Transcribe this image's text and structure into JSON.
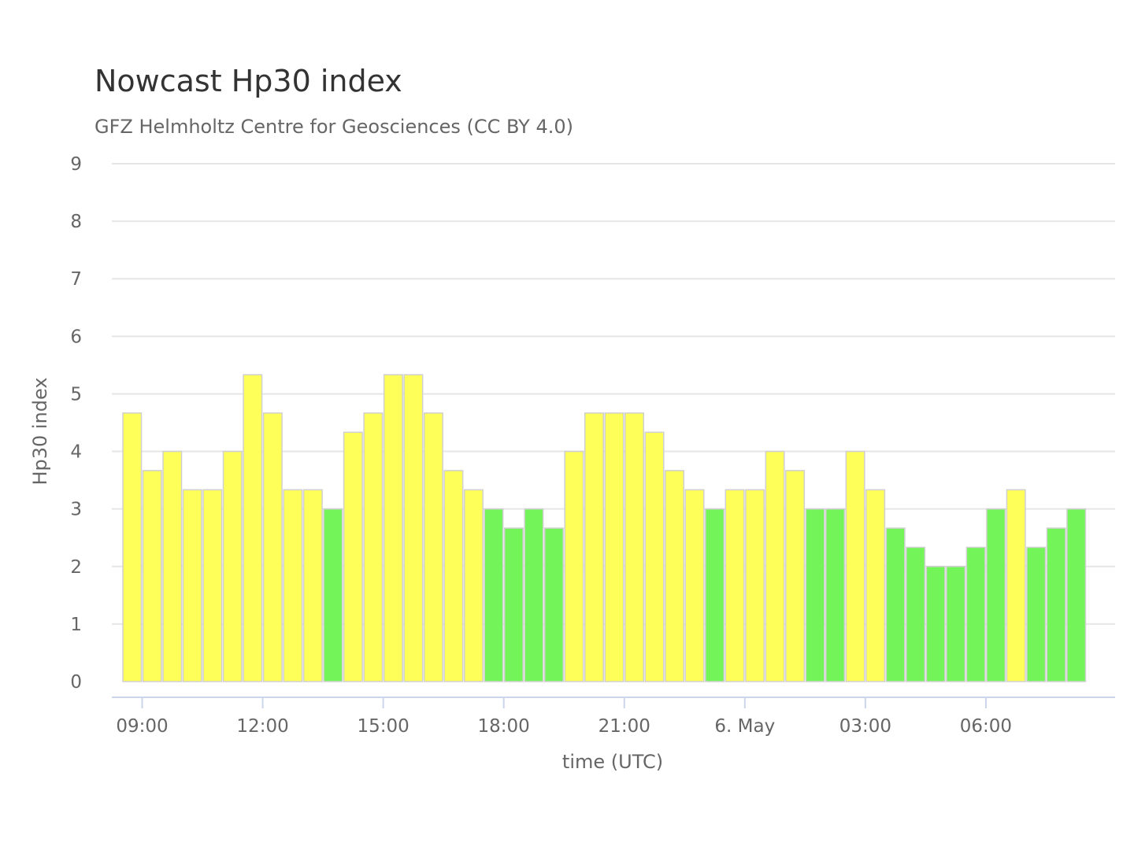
{
  "chart_data": {
    "type": "bar",
    "title": "Nowcast Hp30 index",
    "subtitle": "GFZ Helmholtz Centre for Geosciences (CC BY 4.0)",
    "xlabel": "time (UTC)",
    "ylabel": "Hp30 index",
    "ylim": [
      0,
      9
    ],
    "yticks": [
      "0",
      "1",
      "2",
      "3",
      "4",
      "5",
      "6",
      "7",
      "8",
      "9"
    ],
    "xticks": [
      {
        "label": "09:00",
        "at": 0.5
      },
      {
        "label": "12:00",
        "at": 6.5
      },
      {
        "label": "15:00",
        "at": 12.5
      },
      {
        "label": "18:00",
        "at": 18.5
      },
      {
        "label": "21:00",
        "at": 24.5
      },
      {
        "label": "6. May",
        "at": 30.5
      },
      {
        "label": "03:00",
        "at": 36.5
      },
      {
        "label": "06:00",
        "at": 42.5
      }
    ],
    "xrange": [
      -0.5,
      48.5
    ],
    "grid": true,
    "legend": "none",
    "colors": {
      "green": "#73f55a",
      "yellow": "#ffff5a"
    },
    "series": [
      {
        "values": [
          4.667,
          3.667,
          4,
          3.333,
          3.333,
          4,
          5.333,
          4.667,
          3.333,
          3.333,
          3,
          4.333,
          4.667,
          5.333,
          5.333,
          4.667,
          3.667,
          3.333,
          3,
          2.667,
          3,
          2.667,
          4,
          4.667,
          4.667,
          4.667,
          4.333,
          3.667,
          3.333,
          3,
          3.333,
          3.333,
          4,
          3.667,
          3,
          3,
          4,
          3.333,
          2.667,
          2.333,
          2,
          2,
          2.333,
          3,
          3.333,
          2.333,
          2.667,
          3
        ],
        "bar_colors": [
          "yellow",
          "yellow",
          "yellow",
          "yellow",
          "yellow",
          "yellow",
          "yellow",
          "yellow",
          "yellow",
          "yellow",
          "green",
          "yellow",
          "yellow",
          "yellow",
          "yellow",
          "yellow",
          "yellow",
          "yellow",
          "green",
          "green",
          "green",
          "green",
          "yellow",
          "yellow",
          "yellow",
          "yellow",
          "yellow",
          "yellow",
          "yellow",
          "green",
          "yellow",
          "yellow",
          "yellow",
          "yellow",
          "green",
          "green",
          "yellow",
          "yellow",
          "green",
          "green",
          "green",
          "green",
          "green",
          "green",
          "yellow",
          "green",
          "green",
          "green"
        ]
      }
    ]
  }
}
